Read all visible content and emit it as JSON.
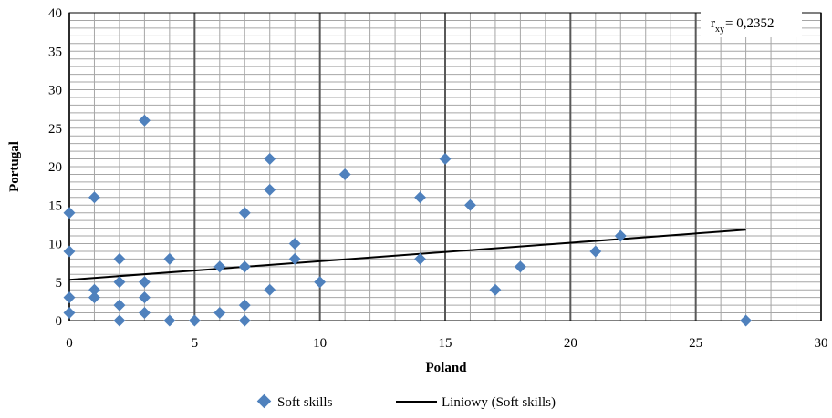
{
  "chart_data": {
    "type": "scatter",
    "title": "",
    "xlabel": "Poland",
    "ylabel": "Portugal",
    "xlim": [
      0,
      30
    ],
    "ylim": [
      0,
      40
    ],
    "x_ticks": [
      "0",
      "5",
      "10",
      "15",
      "20",
      "25",
      "30"
    ],
    "y_ticks": [
      "0",
      "5",
      "10",
      "15",
      "20",
      "25",
      "30",
      "35",
      "40"
    ],
    "x_major_step": 5,
    "x_minor_step": 1,
    "y_step": 1,
    "grid": true,
    "legend_position": "bottom",
    "annotation": {
      "r_symbol": "r",
      "r_subscript": "xy",
      "value_text": "= 0,2352"
    },
    "series": [
      {
        "name": "Soft skills",
        "kind": "scatter",
        "color": "#4F81BD",
        "points": [
          [
            0,
            1
          ],
          [
            0,
            3
          ],
          [
            0,
            9
          ],
          [
            0,
            14
          ],
          [
            1,
            3
          ],
          [
            1,
            4
          ],
          [
            1,
            16
          ],
          [
            2,
            0
          ],
          [
            2,
            2
          ],
          [
            2,
            5
          ],
          [
            2,
            8
          ],
          [
            3,
            1
          ],
          [
            3,
            3
          ],
          [
            3,
            5
          ],
          [
            3,
            26
          ],
          [
            4,
            0
          ],
          [
            4,
            8
          ],
          [
            5,
            0
          ],
          [
            6,
            1
          ],
          [
            6,
            7
          ],
          [
            7,
            0
          ],
          [
            7,
            2
          ],
          [
            7,
            7
          ],
          [
            7,
            14
          ],
          [
            8,
            4
          ],
          [
            8,
            17
          ],
          [
            8,
            21
          ],
          [
            9,
            8
          ],
          [
            9,
            10
          ],
          [
            10,
            5
          ],
          [
            11,
            19
          ],
          [
            14,
            8
          ],
          [
            14,
            16
          ],
          [
            15,
            21
          ],
          [
            16,
            15
          ],
          [
            17,
            4
          ],
          [
            18,
            7
          ],
          [
            21,
            9
          ],
          [
            22,
            11
          ],
          [
            27,
            0
          ]
        ]
      },
      {
        "name": "Liniowy (Soft skills)",
        "kind": "trendline",
        "color": "#000000",
        "x_range": [
          0,
          27
        ],
        "y_values": [
          5.3,
          11.8
        ]
      }
    ]
  }
}
